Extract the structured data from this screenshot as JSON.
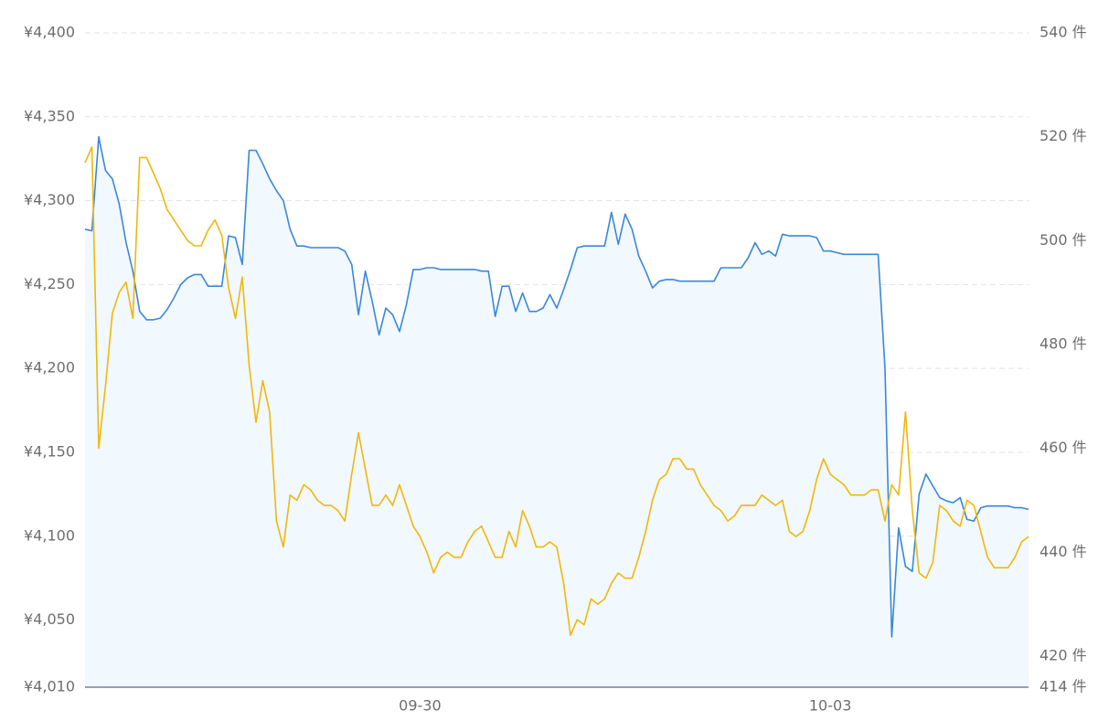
{
  "chart_data": {
    "type": "line",
    "categories": [
      null,
      null,
      null,
      null,
      null,
      null,
      null,
      null,
      null,
      null,
      null,
      null,
      null,
      null,
      null,
      null,
      null,
      null,
      null,
      null,
      null,
      null,
      null,
      null,
      null,
      null,
      null,
      null,
      null,
      null,
      null,
      null,
      null,
      null,
      null,
      null,
      null,
      null,
      null,
      null,
      null,
      null,
      null,
      null,
      null,
      null,
      null,
      null,
      null,
      "09-30",
      null,
      null,
      null,
      null,
      null,
      null,
      null,
      null,
      null,
      null,
      null,
      null,
      null,
      null,
      null,
      null,
      null,
      null,
      null,
      null,
      null,
      null,
      null,
      null,
      null,
      null,
      null,
      null,
      null,
      null,
      null,
      null,
      null,
      null,
      null,
      null,
      null,
      null,
      null,
      null,
      null,
      null,
      null,
      null,
      null,
      null,
      null,
      null,
      null,
      null,
      null,
      null,
      null,
      null,
      null,
      null,
      null,
      null,
      null,
      "10-03",
      null,
      null,
      null,
      null,
      null,
      null,
      null,
      null,
      null,
      null,
      null,
      null,
      null,
      null,
      null,
      null,
      null,
      null,
      null,
      null,
      null,
      null,
      null,
      null,
      null,
      null,
      null,
      null,
      null
    ],
    "series": [
      {
        "color": "#3b87d9",
        "fill": "#f1f8fe",
        "axis": "y",
        "values": [
          4283,
          4282,
          4338,
          4318,
          4313,
          4298,
          4275,
          4258,
          4234,
          4229,
          4229,
          4230,
          4235,
          4242,
          4250,
          4254,
          4256,
          4256,
          4249,
          4249,
          4249,
          4279,
          4278,
          4262,
          4330,
          4330,
          4322,
          4313,
          4306,
          4300,
          4283,
          4273,
          4273,
          4272,
          4272,
          4272,
          4272,
          4272,
          4270,
          4262,
          4232,
          4258,
          4240,
          4220,
          4236,
          4232,
          4222,
          4238,
          4259,
          4259,
          4260,
          4260,
          4259,
          4259,
          4259,
          4259,
          4259,
          4259,
          4258,
          4258,
          4231,
          4249,
          4249,
          4234,
          4245,
          4234,
          4234,
          4236,
          4244,
          4236,
          4247,
          4259,
          4272,
          4273,
          4273,
          4273,
          4273,
          4293,
          4274,
          4292,
          4283,
          4267,
          4258,
          4248,
          4252,
          4253,
          4253,
          4252,
          4252,
          4252,
          4252,
          4252,
          4252,
          4260,
          4260,
          4260,
          4260,
          4266,
          4275,
          4268,
          4270,
          4267,
          4280,
          4279,
          4279,
          4279,
          4279,
          4278,
          4270,
          4270,
          4269,
          4268,
          4268,
          4268,
          4268,
          4268,
          4268,
          4200,
          4040,
          4105,
          4082,
          4079,
          4125,
          4137,
          4130,
          4123,
          4121,
          4120,
          4123,
          4110,
          4109,
          4117,
          4118,
          4118,
          4118,
          4118,
          4117,
          4117,
          4116
        ]
      },
      {
        "color": "#efb80c",
        "axis": "y2",
        "values": [
          515,
          518,
          460,
          472,
          486,
          490,
          492,
          485,
          516,
          516,
          513,
          510,
          506,
          504,
          502,
          500,
          499,
          499,
          502,
          504,
          501,
          491,
          485,
          493,
          476,
          465,
          473,
          467,
          446,
          441,
          451,
          450,
          453,
          452,
          450,
          449,
          449,
          448,
          446,
          455,
          463,
          456,
          449,
          449,
          451,
          449,
          453,
          449,
          445,
          443,
          440,
          436,
          439,
          440,
          439,
          439,
          442,
          444,
          445,
          442,
          439,
          439,
          444,
          441,
          448,
          445,
          441,
          441,
          442,
          441,
          434,
          424,
          427,
          426,
          431,
          430,
          431,
          434,
          436,
          435,
          435,
          439,
          444,
          450,
          454,
          455,
          458,
          458,
          456,
          456,
          453,
          451,
          449,
          448,
          446,
          447,
          449,
          449,
          449,
          451,
          450,
          449,
          450,
          444,
          443,
          444,
          448,
          454,
          458,
          455,
          454,
          453,
          451,
          451,
          451,
          452,
          452,
          446,
          453,
          451,
          467,
          448,
          436,
          435,
          438,
          449,
          448,
          446,
          445,
          450,
          449,
          444,
          439,
          437,
          437,
          437,
          439,
          442,
          443
        ]
      }
    ],
    "ylim": [
      4010,
      4400
    ],
    "yticks": [
      {
        "value": 4010,
        "label": "¥4,010"
      },
      {
        "value": 4050,
        "label": "¥4,050"
      },
      {
        "value": 4100,
        "label": "¥4,100"
      },
      {
        "value": 4150,
        "label": "¥4,150"
      },
      {
        "value": 4200,
        "label": "¥4,200"
      },
      {
        "value": 4250,
        "label": "¥4,250"
      },
      {
        "value": 4300,
        "label": "¥4,300"
      },
      {
        "value": 4350,
        "label": "¥4,350"
      },
      {
        "value": 4400,
        "label": "¥4,400"
      }
    ],
    "y2lim": [
      414,
      540
    ],
    "y2ticks": [
      {
        "value": 414,
        "label": "414 件"
      },
      {
        "value": 420,
        "label": "420 件"
      },
      {
        "value": 440,
        "label": "440 件"
      },
      {
        "value": 460,
        "label": "460 件"
      },
      {
        "value": 480,
        "label": "480 件"
      },
      {
        "value": 500,
        "label": "500 件"
      },
      {
        "value": 520,
        "label": "520 件"
      },
      {
        "value": 540,
        "label": "540 件"
      }
    ],
    "grid": true
  }
}
